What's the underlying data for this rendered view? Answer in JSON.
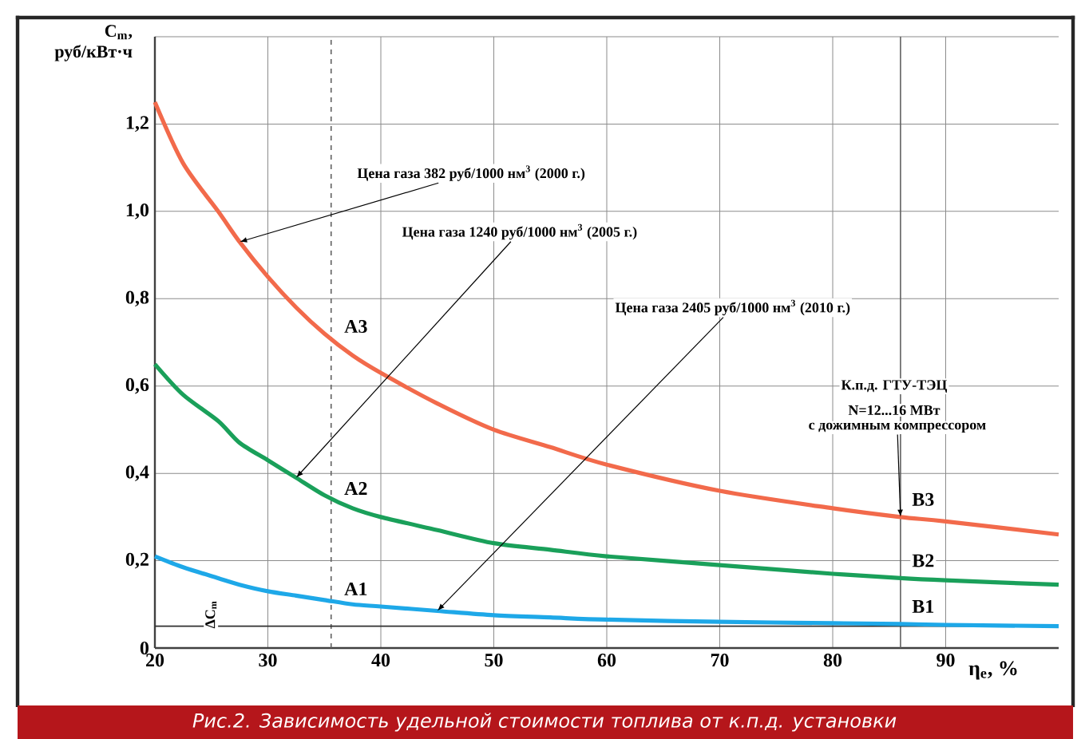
{
  "chart_data": {
    "type": "line",
    "title": "Рис.2. Зависимость удельной стоимости топлива от к.п.д. установки",
    "xlabel": "η$_{e}$, %",
    "ylabel": "C$_{m}$, руб/кВт·ч",
    "x": [
      20,
      22.5,
      25.6,
      27.5,
      30,
      32.5,
      35,
      37.5,
      40,
      45,
      50,
      55,
      60,
      70,
      80,
      86,
      90,
      100
    ],
    "series": [
      {
        "color": "#f26a4b",
        "values": [
          1.25,
          1.11,
          1.0,
          0.93,
          0.85,
          0.78,
          0.72,
          0.67,
          0.63,
          0.56,
          0.5,
          0.46,
          0.42,
          0.36,
          0.32,
          0.3,
          0.29,
          0.26
        ]
      },
      {
        "color": "#1aa05a",
        "values": [
          0.65,
          0.58,
          0.52,
          0.47,
          0.43,
          0.39,
          0.35,
          0.32,
          0.3,
          0.27,
          0.24,
          0.225,
          0.21,
          0.19,
          0.17,
          0.16,
          0.155,
          0.145
        ]
      },
      {
        "color": "#1ea8e8",
        "values": [
          0.21,
          0.185,
          0.16,
          0.145,
          0.13,
          0.12,
          0.11,
          0.1,
          0.095,
          0.085,
          0.075,
          0.07,
          0.065,
          0.06,
          0.057,
          0.055,
          0.053,
          0.05
        ]
      }
    ],
    "xlim": [
      20,
      100
    ],
    "ylim": [
      0,
      1.4
    ],
    "xticks": [
      20,
      30,
      40,
      50,
      60,
      70,
      80,
      90
    ],
    "yticks": [
      0,
      {
        "value": 0.2,
        "label": "0,2"
      },
      {
        "value": 0.4,
        "label": "0,4"
      },
      {
        "value": 0.6,
        "label": "0,6"
      },
      {
        "value": 0.8,
        "label": "0,8"
      },
      {
        "value": 1.0,
        "label": "1,0"
      },
      {
        "value": 1.2,
        "label": "1,2"
      },
      {
        "value": 1.4,
        "label": null
      }
    ],
    "grid": true,
    "marker": "none",
    "line_style": "solid",
    "ref_lines": [
      {
        "axis": "x",
        "value": 35.6,
        "line_style": "dashed",
        "color": "#606060"
      },
      {
        "axis": "x",
        "value": 86,
        "line_style": "solid",
        "color": "#606060"
      },
      {
        "axis": "y",
        "value": 0.05,
        "line_style": "solid",
        "color": "#303030"
      }
    ],
    "annotations": [
      {
        "text": "Цена газа 382 руб/1000 нм$^{3}$ (2000 г.)",
        "x": 27.5,
        "y": 0.93
      },
      {
        "text": "Цена газа 1240 руб/1000 нм$^{3}$ (2005 г.)",
        "x": 32.5,
        "y": 0.39
      },
      {
        "text": "Цена газа 2405 руб/1000 нм$^{3}$ (2010 г.)",
        "x": 45,
        "y": 0.085
      },
      "К.п.д. ГТУ-ТЭЦ",
      "N=12...16 МВт",
      {
        "text": "с дожимным компрессором",
        "x": 86,
        "y": 0.3
      },
      {
        "text": "A1",
        "x": 35.6,
        "y": 0.11
      },
      {
        "text": "A2",
        "x": 35.6,
        "y": 0.34
      },
      {
        "text": "A3",
        "x": 35.6,
        "y": 0.7
      },
      {
        "text": "B1",
        "x": 86,
        "y": 0.055
      },
      {
        "text": "B2",
        "x": 86,
        "y": 0.16
      },
      {
        "text": "B3",
        "x": 86,
        "y": 0.3
      },
      "ΔC$_{m}$"
    ]
  }
}
